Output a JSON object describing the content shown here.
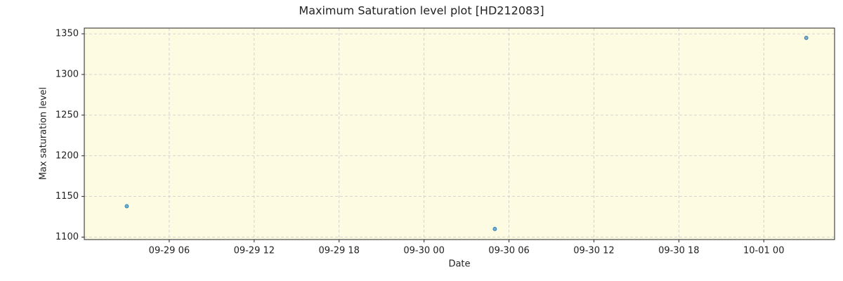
{
  "chart_data": {
    "type": "scatter",
    "title": "Maximum Saturation level plot [HD212083]",
    "x_label": "Date",
    "y_label": "Max saturation level",
    "series": [
      {
        "name": "Max saturation level",
        "color": "#1f77b4",
        "x": [
          "09-29 03",
          "09-30 05",
          "10-01 03"
        ],
        "values": [
          1138,
          1110,
          1345
        ]
      }
    ],
    "xlim": [
      "09-29 00",
      "10-01 05"
    ],
    "xticks": [
      "09-29 06",
      "09-29 12",
      "09-29 18",
      "09-30 00",
      "09-30 06",
      "09-30 12",
      "09-30 18",
      "10-01 00"
    ],
    "ylim": [
      1097,
      1357
    ],
    "yticks": [
      1100,
      1150,
      1200,
      1250,
      1300,
      1350
    ],
    "grid": true,
    "background": "#fdfce3"
  }
}
